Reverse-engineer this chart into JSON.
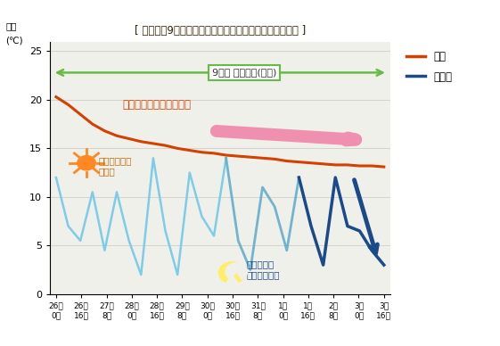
{
  "title": "[ 無暖房（9日間）時の、外気温と室温の温度変化の違い ]",
  "ylabel_line1": "温度",
  "ylabel_line2": "(℃)",
  "ylim": [
    0,
    26
  ],
  "yticks": [
    0,
    5,
    10,
    15,
    20,
    25
  ],
  "xlabel_top": [
    "26日",
    "26日",
    "27日",
    "28日",
    "28日",
    "29日",
    "30日",
    "30日",
    "31日",
    "1日",
    "1日",
    "2日",
    "3日",
    "3日"
  ],
  "xlabel_bot": [
    "0時",
    "16時",
    "8時",
    "0時",
    "16時",
    "8時",
    "0時",
    "16時",
    "8時",
    "0時",
    "16時",
    "8時",
    "0時",
    "16時"
  ],
  "room_temp": [
    20.3,
    19.5,
    18.5,
    17.5,
    16.8,
    16.3,
    16.0,
    15.7,
    15.5,
    15.3,
    15.0,
    14.8,
    14.6,
    14.5,
    14.3,
    14.2,
    14.1,
    14.0,
    13.9,
    13.7,
    13.6,
    13.5,
    13.4,
    13.3,
    13.3,
    13.2,
    13.2,
    13.1
  ],
  "outdoor_temp_x": [
    0,
    1,
    2,
    3,
    4,
    5,
    6,
    7,
    8,
    9,
    10,
    11,
    12,
    13,
    14,
    15,
    16,
    17,
    18,
    19,
    20,
    21,
    22,
    23,
    24,
    25,
    26,
    27
  ],
  "outdoor_temp_y": [
    12.0,
    7.0,
    5.5,
    10.5,
    4.5,
    10.5,
    5.5,
    2.0,
    14.0,
    6.5,
    2.0,
    12.5,
    8.0,
    6.0,
    14.0,
    5.5,
    2.5,
    11.0,
    9.0,
    4.5,
    12.0,
    7.0,
    3.0,
    12.0,
    7.0,
    6.5,
    4.5,
    3.0
  ],
  "room_color": "#d44000",
  "outdoor_color_light": "#7dcce8",
  "outdoor_color_mid": "#5aaac8",
  "outdoor_color_dark": "#1a4a8a",
  "bg_color": "#ffffff",
  "plot_bg": "#f0f0eb",
  "arrow_color_9days": "#66bb44",
  "annotation_room": "室温は急激に変化しない",
  "annotation_day": "日中は気温が\n上がる",
  "annotation_night": "夜から朝は\n急激に冷える",
  "annotation_9days": "9日間 暖房なし(留守)",
  "legend_room": "室温",
  "legend_outdoor": "外気温",
  "title_color": "#3a2000",
  "annotation_room_color": "#cc4400",
  "annotation_day_color": "#cc6600",
  "annotation_night_color": "#1a4a8a"
}
